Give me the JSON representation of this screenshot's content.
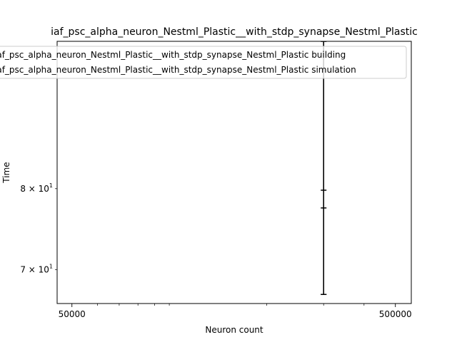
{
  "chart_data": {
    "type": "line",
    "title": "iaf_psc_alpha_neuron_Nestml_Plastic__with_stdp_synapse_Nestml_Plastic",
    "xlabel": "Neuron count",
    "ylabel": "Time",
    "xscale": "log",
    "yscale": "log",
    "xlim": [
      45000,
      560000
    ],
    "ylim": [
      66.2,
      102
    ],
    "x_ticks": [
      {
        "value": 50000,
        "label": "50000"
      },
      {
        "value": 500000,
        "label": "500000"
      }
    ],
    "y_ticks": [
      {
        "value": 70,
        "label": "7 × 10",
        "exp": "1"
      },
      {
        "value": 80,
        "label": "8 × 10",
        "exp": "1"
      }
    ],
    "legend_position": "top-left",
    "grid": false,
    "series": [
      {
        "name": "iaf_psc_alpha_neuron_Nestml_Plastic__with_stdp_synapse_Nestml_Plastic building",
        "color": "#1f77b4",
        "x": [
          300000
        ],
        "y": [
          79.8
        ],
        "err_low": [
          67.2
        ],
        "err_high": [
          102
        ]
      },
      {
        "name": "iaf_psc_alpha_neuron_Nestml_Plastic__with_stdp_synapse_Nestml_Plastic simulation",
        "color": "#ff7f0e",
        "x": [
          300000
        ],
        "y": [
          77.5
        ],
        "err_low": [
          67.2
        ],
        "err_high": [
          102
        ]
      }
    ]
  }
}
